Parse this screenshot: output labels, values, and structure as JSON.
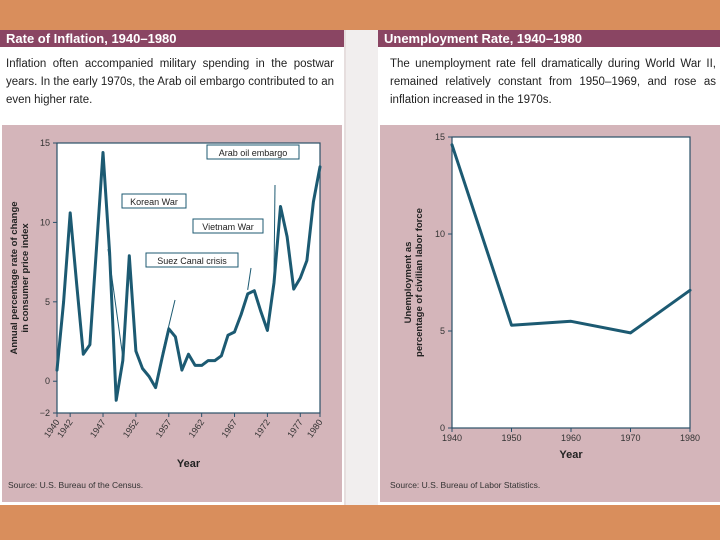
{
  "colors": {
    "band": "#d98e5c",
    "title_bar": "#8a4563",
    "plot_area": "#d4b5ba",
    "line": "#1c5a72",
    "axis": "#2a4f68"
  },
  "left_panel": {
    "title": "Rate of Inflation, 1940–1980",
    "description": "Inflation often accompanied military spending in the postwar years. In the early 1970s, the Arab oil embargo contributed to an even higher rate.",
    "source": "Source: U.S. Bureau of the Census."
  },
  "right_panel": {
    "title": "Unemployment Rate, 1940–1980",
    "description": "The unemployment rate fell dramatically during World War II, remained relatively constant from 1950–1969, and rose as inflation increased in the 1970s.",
    "source": "Source: U.S. Bureau of Labor Statistics."
  },
  "chart_data": [
    {
      "type": "line",
      "title": "Rate of Inflation, 1940–1980",
      "xlabel": "Year",
      "ylabel_lines": [
        "Annual percentage rate of change",
        "in consumer price index"
      ],
      "xlim": [
        1940,
        1980
      ],
      "ylim": [
        -2,
        15
      ],
      "xticks": [
        "1940",
        "1942",
        "1947",
        "1952",
        "1957",
        "1962",
        "1967",
        "1972",
        "1977",
        "1980"
      ],
      "yticks": [
        "−2",
        "0",
        "5",
        "10",
        "15"
      ],
      "series": [
        {
          "name": "Inflation rate",
          "x": [
            1940,
            1941,
            1942,
            1943,
            1944,
            1945,
            1946,
            1947,
            1948,
            1949,
            1950,
            1951,
            1952,
            1953,
            1954,
            1955,
            1956,
            1957,
            1958,
            1959,
            1960,
            1961,
            1962,
            1963,
            1964,
            1965,
            1966,
            1967,
            1968,
            1969,
            1970,
            1971,
            1972,
            1973,
            1974,
            1975,
            1976,
            1977,
            1978,
            1979,
            1980
          ],
          "values": [
            0.7,
            5.0,
            10.6,
            6.1,
            1.7,
            2.3,
            8.3,
            14.4,
            8.1,
            -1.2,
            1.3,
            7.9,
            1.9,
            0.8,
            0.3,
            -0.4,
            1.5,
            3.3,
            2.8,
            0.7,
            1.7,
            1.0,
            1.0,
            1.3,
            1.3,
            1.6,
            2.9,
            3.1,
            4.2,
            5.5,
            5.7,
            4.4,
            3.2,
            6.2,
            11.0,
            9.1,
            5.8,
            6.5,
            7.6,
            11.3,
            13.5
          ]
        }
      ],
      "annotations": [
        {
          "label": "Korean War",
          "x": 1950
        },
        {
          "label": "Suez Canal crisis",
          "x": 1956
        },
        {
          "label": "Vietnam War",
          "x": 1969
        },
        {
          "label": "Arab oil embargo",
          "x": 1973
        }
      ]
    },
    {
      "type": "line",
      "title": "Unemployment Rate, 1940–1980",
      "xlabel": "Year",
      "ylabel_lines": [
        "Unemployment as",
        "percentage of civilian labor force"
      ],
      "xlim": [
        1940,
        1980
      ],
      "ylim": [
        0,
        15
      ],
      "xticks": [
        "1940",
        "1950",
        "1960",
        "1970",
        "1980"
      ],
      "yticks": [
        "0",
        "5",
        "10",
        "15"
      ],
      "series": [
        {
          "name": "Unemployment rate",
          "x": [
            1940,
            1950,
            1960,
            1970,
            1980
          ],
          "values": [
            14.6,
            5.3,
            5.5,
            4.9,
            7.1
          ]
        }
      ]
    }
  ]
}
